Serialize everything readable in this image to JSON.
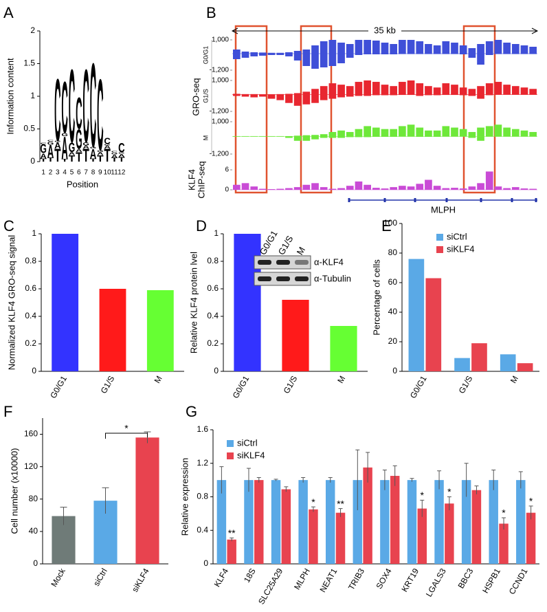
{
  "chart_data": [
    {
      "type": "logo",
      "panel": "A",
      "ylabel": "Information content",
      "xlabel": "Position",
      "xlim": [
        0.5,
        12.5
      ],
      "xticks": [
        1,
        2,
        3,
        4,
        5,
        6,
        7,
        8,
        9,
        10,
        11,
        12
      ],
      "ylim": [
        0,
        2
      ],
      "yticks": [
        0,
        0.5,
        1,
        1.5,
        2
      ],
      "series": [
        {
          "name": "T",
          "color": "#e0262a",
          "values": [
            0.05,
            0.06,
            0.2,
            0.04,
            0.1,
            0.15,
            0.2,
            0.05,
            0.1,
            0.2,
            0.06,
            0.07
          ]
        },
        {
          "name": "A",
          "color": "#34a853",
          "values": [
            0.08,
            0.2,
            0.1,
            0.35,
            0.05,
            0.05,
            0.05,
            0.15,
            0.05,
            0.05,
            0.05,
            0.05
          ]
        },
        {
          "name": "G",
          "color": "#f5a623",
          "values": [
            0.14,
            0.05,
            0.02,
            0.05,
            0.15,
            0.3,
            0.05,
            0.03,
            0.03,
            0.02,
            0.03,
            0.02
          ]
        },
        {
          "name": "C",
          "color": "#2a3bd6",
          "values": [
            0.02,
            0.02,
            0.98,
            0.81,
            1.15,
            0.5,
            1.15,
            1.32,
            1.12,
            0.1,
            0.02,
            0.15
          ]
        }
      ]
    },
    {
      "type": "tracks",
      "panel": "B",
      "scale_label": "35 kb",
      "group_label": "GRO-seq",
      "gene": "MLPH",
      "tracks": [
        {
          "name": "G0/G1",
          "color": "#3f4fd8",
          "ylim": [
            -1200,
            1000
          ],
          "yticks": [
            {
              "value": 1000,
              "label": "1,000"
            },
            {
              "value": -1200,
              "label": "-1,200"
            }
          ],
          "plus": [
            300,
            150,
            100,
            80,
            60,
            60,
            100,
            200,
            300,
            600,
            900,
            1000,
            800,
            700,
            1000,
            1000,
            950,
            800,
            700,
            1000,
            1000,
            900,
            700,
            600,
            900,
            800,
            600,
            400,
            700,
            900,
            1000,
            800,
            700,
            600,
            500
          ],
          "minus": [
            -400,
            -300,
            -200,
            -150,
            -100,
            -100,
            -200,
            -500,
            -900,
            -1100,
            -1000,
            -900,
            -700,
            -300,
            -100,
            -50,
            -50,
            -50,
            -50,
            -30,
            -30,
            -30,
            -30,
            -30,
            -30,
            -30,
            -50,
            -300,
            -800,
            -100,
            -30,
            -30,
            -30,
            -30,
            -30
          ]
        },
        {
          "name": "G1/S",
          "color": "#e8262f",
          "ylim": [
            -1200,
            1000
          ],
          "yticks": [
            {
              "value": 1000,
              "label": "1,000"
            },
            {
              "value": -1200,
              "label": "-1,200"
            }
          ],
          "plus": [
            50,
            30,
            30,
            20,
            20,
            30,
            50,
            100,
            200,
            400,
            600,
            800,
            700,
            600,
            900,
            1000,
            900,
            700,
            600,
            900,
            1000,
            800,
            600,
            500,
            800,
            700,
            500,
            400,
            600,
            800,
            900,
            700,
            600,
            500,
            400
          ],
          "minus": [
            -100,
            -150,
            -200,
            -150,
            -300,
            -400,
            -600,
            -800,
            -700,
            -600,
            -400,
            -300,
            -200,
            -150,
            -100,
            -100,
            -50,
            -50,
            -50,
            -30,
            -30,
            -100,
            -50,
            -50,
            -30,
            -30,
            -50,
            -100,
            -300,
            -50,
            -20,
            -20,
            -20,
            -20,
            -20
          ]
        },
        {
          "name": "M",
          "color": "#6ee83a",
          "ylim": [
            -1200,
            1000
          ],
          "yticks": [
            {
              "value": 1000,
              "label": "1,000"
            },
            {
              "value": -1200,
              "label": "-1,200"
            }
          ],
          "plus": [
            20,
            20,
            20,
            20,
            20,
            20,
            20,
            50,
            80,
            100,
            150,
            300,
            400,
            300,
            500,
            700,
            600,
            500,
            500,
            700,
            800,
            600,
            400,
            400,
            700,
            600,
            500,
            300,
            600,
            700,
            800,
            600,
            500,
            400,
            300
          ],
          "minus": [
            -20,
            -20,
            -20,
            -20,
            -20,
            -20,
            -100,
            -300,
            -300,
            -200,
            -100,
            -100,
            -100,
            -50,
            -50,
            -50,
            -30,
            -30,
            -30,
            -20,
            -20,
            -30,
            -30,
            -30,
            -20,
            -20,
            -20,
            -100,
            -300,
            -20,
            -20,
            -20,
            -20,
            -20,
            -20
          ]
        },
        {
          "name": [
            "KLF4",
            "ChIP-seq"
          ],
          "color": "#c94bd6",
          "ylim": [
            0,
            6
          ],
          "yticks": [
            6,
            0
          ],
          "values": [
            1.5,
            2,
            1,
            0.3,
            0.2,
            0.3,
            0.5,
            0.8,
            1.5,
            2,
            0.8,
            0.3,
            0.5,
            1.2,
            2.5,
            1.5,
            0.6,
            0.4,
            0.8,
            1.2,
            1,
            1.8,
            3,
            1.2,
            0.5,
            0.6,
            0.4,
            1,
            2,
            5.5,
            1,
            0.5,
            0.8,
            0.4,
            0.3
          ]
        }
      ]
    },
    {
      "type": "bar",
      "panel": "C",
      "ylabel": "Normalized KLF4 GRO-seq signal",
      "categories": [
        "G0/G1",
        "G1/S",
        "M"
      ],
      "values": [
        1,
        0.6,
        0.59
      ],
      "colors": [
        "#3333ff",
        "#ff1a1a",
        "#66ff33"
      ],
      "ylim": [
        0,
        1
      ],
      "yticks": [
        0,
        0.2,
        0.4,
        0.6,
        0.8,
        1
      ]
    },
    {
      "type": "bar",
      "panel": "D",
      "ylabel": "Relative KLF4 protein lvel",
      "categories": [
        "G0/G1",
        "G1/S",
        "M"
      ],
      "values": [
        1,
        0.52,
        0.33
      ],
      "colors": [
        "#3333ff",
        "#ff1a1a",
        "#66ff33"
      ],
      "ylim": [
        0,
        1
      ],
      "yticks": [
        0,
        0.2,
        0.4,
        0.6,
        0.8,
        1
      ],
      "blot_lanes": [
        "G0/G1",
        "G1/S",
        "M"
      ],
      "blot_rows": [
        "α-KLF4",
        "α-Tubulin"
      ]
    },
    {
      "type": "grouped_bar",
      "panel": "E",
      "ylabel": "Percentage of cells",
      "legend": "upper right",
      "categories": [
        "G0/G1",
        "G1/S",
        "M"
      ],
      "series": [
        {
          "name": "siCtrl",
          "color": "#5aa9e6",
          "values": [
            76,
            9,
            11.5
          ]
        },
        {
          "name": "siKLF4",
          "color": "#e8434f",
          "values": [
            63,
            19,
            5.5
          ]
        }
      ],
      "ylim": [
        0,
        100
      ],
      "yticks": [
        0,
        20,
        40,
        60,
        80,
        100
      ]
    },
    {
      "type": "bar",
      "panel": "F",
      "ylabel": "Cell number (x10000)",
      "categories": [
        "Mock",
        "siCtrl",
        "siKLF4"
      ],
      "values": [
        59,
        78,
        156
      ],
      "errors": [
        11,
        16,
        7
      ],
      "colors": [
        "#6f7b78",
        "#5aa9e6",
        "#e8434f"
      ],
      "annotation": "*",
      "ylim": [
        0,
        180
      ],
      "yticks": [
        0,
        40,
        80,
        120,
        160
      ]
    },
    {
      "type": "grouped_bar",
      "panel": "G",
      "ylabel": "Relative expression",
      "legend": "upper left",
      "categories": [
        "KLF4",
        "18S",
        "SLC25A29",
        "MLPH",
        "NEAT1",
        "TRIB3",
        "SOX4",
        "KRT19",
        "LGALS3",
        "BBC3",
        "HSPB1",
        "CCND1"
      ],
      "series": [
        {
          "name": "siCtrl",
          "color": "#5aa9e6",
          "values": [
            1,
            1,
            1,
            1,
            1,
            1,
            1,
            1,
            1,
            1,
            1,
            1
          ],
          "errors": [
            0.16,
            0.14,
            0.01,
            0.03,
            0.03,
            0.36,
            0.12,
            0.02,
            0.11,
            0.2,
            0.12,
            0.1
          ]
        },
        {
          "name": "siKLF4",
          "color": "#e8434f",
          "values": [
            0.29,
            1,
            0.89,
            0.65,
            0.61,
            1.15,
            1.05,
            0.66,
            0.72,
            0.88,
            0.48,
            0.61
          ],
          "errors": [
            0.02,
            0.03,
            0.03,
            0.03,
            0.05,
            0.18,
            0.12,
            0.1,
            0.08,
            0.05,
            0.07,
            0.08
          ]
        }
      ],
      "significance": [
        "**",
        null,
        null,
        "*",
        "**",
        null,
        null,
        "*",
        "*",
        null,
        "*",
        "*"
      ],
      "ylim": [
        0,
        1.6
      ],
      "yticks": [
        0,
        0.4,
        0.8,
        1.2,
        1.6
      ]
    }
  ]
}
